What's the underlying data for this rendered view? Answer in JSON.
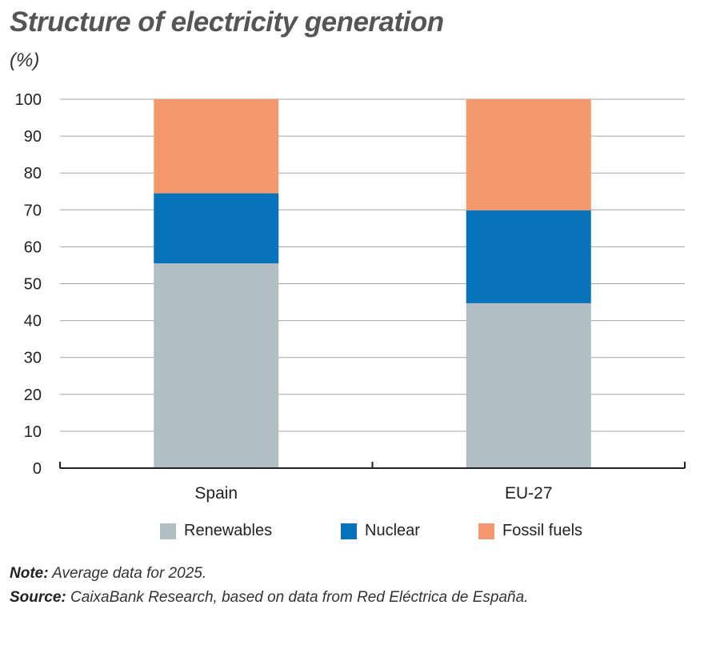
{
  "chart_data": {
    "type": "bar",
    "stacked": true,
    "title": "Structure of electricity generation",
    "ylabel": "(%)",
    "xlabel": "",
    "ylim": [
      0,
      100
    ],
    "yticks": [
      0,
      10,
      20,
      30,
      40,
      50,
      60,
      70,
      80,
      90,
      100
    ],
    "categories": [
      "Spain",
      "EU-27"
    ],
    "series": [
      {
        "name": "Renewables",
        "color": "#b1bec4",
        "values": [
          55.5,
          44.7
        ]
      },
      {
        "name": "Nuclear",
        "color": "#0673bb",
        "values": [
          19.0,
          25.2
        ]
      },
      {
        "name": "Fossil fuels",
        "color": "#f4986d",
        "values": [
          25.5,
          30.1
        ]
      }
    ],
    "legend_position": "bottom",
    "grid": true
  },
  "footer": {
    "note_label": "Note:",
    "note_text": "Average data for 2025.",
    "source_label": "Source:",
    "source_text": "CaixaBank Research, based on data from Red Eléctrica de España."
  }
}
